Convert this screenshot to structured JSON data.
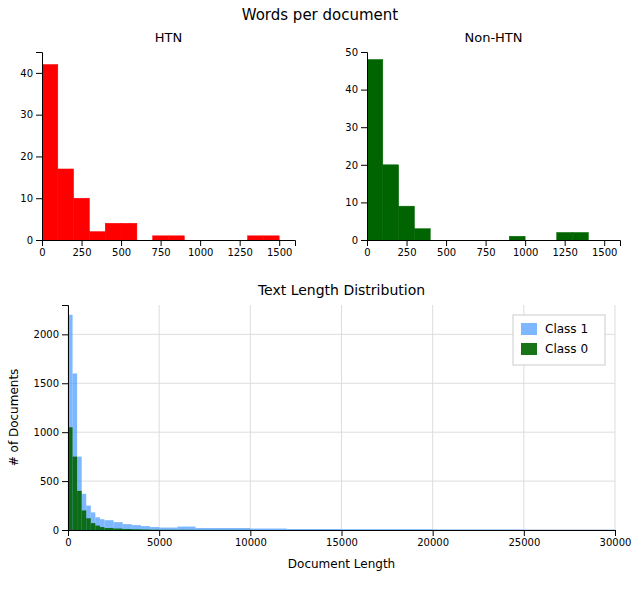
{
  "title": "Words per document",
  "chart_data": [
    {
      "type": "histogram",
      "title": "HTN",
      "bins": [
        0,
        100,
        200,
        300,
        400,
        500,
        600,
        700,
        800,
        900,
        1000,
        1100,
        1200,
        1300,
        1400,
        1500
      ],
      "values": [
        42,
        17,
        10,
        2,
        4,
        4,
        0,
        1,
        1,
        0,
        0,
        0,
        0,
        1,
        1
      ],
      "color": "#ff0000",
      "xlim": [
        0,
        1600
      ],
      "xticks": [
        0,
        250,
        500,
        750,
        1000,
        1250,
        1500
      ],
      "ylim": [
        0,
        45
      ],
      "yticks": [
        0,
        10,
        20,
        30,
        40
      ],
      "grid": false
    },
    {
      "type": "histogram",
      "title": "Non-HTN",
      "bins": [
        0,
        100,
        200,
        300,
        400,
        500,
        600,
        700,
        800,
        900,
        1000,
        1100,
        1200,
        1300,
        1400,
        1500
      ],
      "values": [
        48,
        20,
        9,
        3,
        0,
        0,
        0,
        0,
        0,
        1,
        0,
        0,
        2,
        2,
        0
      ],
      "color": "#006400",
      "xlim": [
        0,
        1600
      ],
      "xticks": [
        0,
        250,
        500,
        750,
        1000,
        1250,
        1500
      ],
      "ylim": [
        0,
        50
      ],
      "yticks": [
        0,
        10,
        20,
        30,
        40,
        50
      ],
      "grid": false
    },
    {
      "type": "histogram",
      "title": "Text Length Distribution",
      "xlabel": "Document Length",
      "ylabel": "# of Documents",
      "bins": [
        0,
        250,
        500,
        750,
        1000,
        1250,
        1500,
        1750,
        2000,
        2500,
        3000,
        3500,
        4000,
        4500,
        5000,
        6000,
        7000,
        8000,
        10000,
        12000,
        15000,
        20000,
        25000,
        30000
      ],
      "series": [
        {
          "name": "Class 1",
          "color": "#4499ff",
          "values": [
            2200,
            1600,
            750,
            370,
            250,
            180,
            130,
            110,
            100,
            80,
            60,
            50,
            40,
            30,
            25,
            35,
            20,
            20,
            15,
            10,
            8,
            5,
            3
          ]
        },
        {
          "name": "Class 0",
          "color": "#006400",
          "values": [
            1050,
            750,
            400,
            200,
            120,
            70,
            45,
            30,
            20,
            15,
            10,
            7,
            5,
            3,
            2,
            2,
            1,
            1,
            0,
            0,
            0,
            0,
            0
          ]
        }
      ],
      "xlim": [
        0,
        30000
      ],
      "xticks": [
        0,
        5000,
        10000,
        15000,
        20000,
        25000,
        30000
      ],
      "ylim": [
        0,
        2300
      ],
      "yticks": [
        0,
        500,
        1000,
        1500,
        2000
      ],
      "grid": true,
      "legend": "top-right"
    }
  ]
}
